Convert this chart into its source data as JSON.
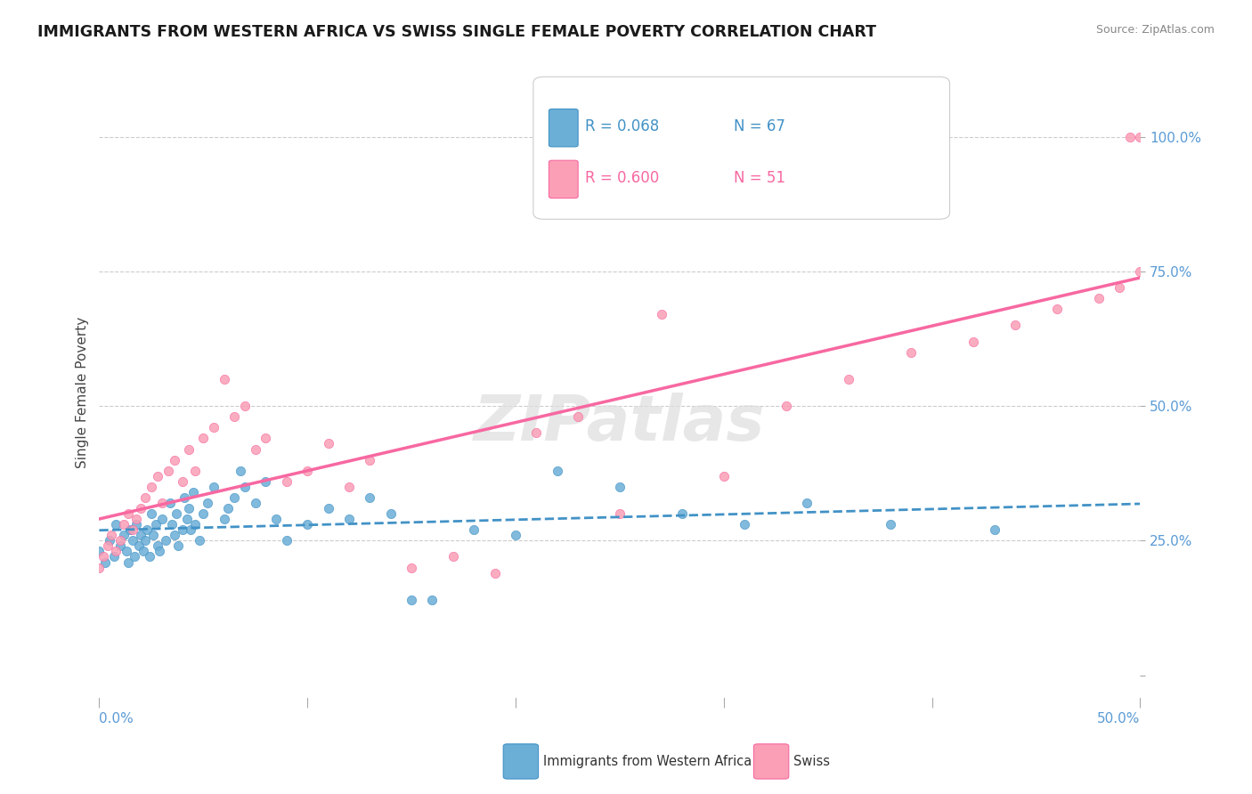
{
  "title": "IMMIGRANTS FROM WESTERN AFRICA VS SWISS SINGLE FEMALE POVERTY CORRELATION CHART",
  "source": "Source: ZipAtlas.com",
  "ylabel": "Single Female Poverty",
  "y_ticks": [
    0.0,
    0.25,
    0.5,
    0.75,
    1.0
  ],
  "y_tick_labels": [
    "",
    "25.0%",
    "50.0%",
    "75.0%",
    "100.0%"
  ],
  "x_range": [
    0.0,
    0.5
  ],
  "y_range": [
    -0.05,
    1.1
  ],
  "legend_r1": "R = 0.068",
  "legend_n1": "N = 67",
  "legend_r2": "R = 0.600",
  "legend_n2": "N = 51",
  "blue_color": "#6baed6",
  "pink_color": "#fa9fb5",
  "blue_line_color": "#4292c6",
  "pink_line_color": "#f768a1",
  "axis_color": "#5b9bd5",
  "blue_scatter_x": [
    0.0,
    0.003,
    0.005,
    0.007,
    0.008,
    0.01,
    0.012,
    0.013,
    0.014,
    0.015,
    0.016,
    0.017,
    0.018,
    0.019,
    0.02,
    0.021,
    0.022,
    0.023,
    0.024,
    0.025,
    0.026,
    0.027,
    0.028,
    0.029,
    0.03,
    0.032,
    0.034,
    0.035,
    0.036,
    0.037,
    0.038,
    0.04,
    0.041,
    0.042,
    0.043,
    0.044,
    0.045,
    0.046,
    0.048,
    0.05,
    0.052,
    0.055,
    0.06,
    0.062,
    0.065,
    0.068,
    0.07,
    0.075,
    0.08,
    0.085,
    0.09,
    0.1,
    0.11,
    0.12,
    0.13,
    0.14,
    0.15,
    0.16,
    0.18,
    0.2,
    0.22,
    0.25,
    0.28,
    0.31,
    0.34,
    0.38,
    0.43
  ],
  "blue_scatter_y": [
    0.23,
    0.21,
    0.25,
    0.22,
    0.28,
    0.24,
    0.26,
    0.23,
    0.21,
    0.27,
    0.25,
    0.22,
    0.28,
    0.24,
    0.26,
    0.23,
    0.25,
    0.27,
    0.22,
    0.3,
    0.26,
    0.28,
    0.24,
    0.23,
    0.29,
    0.25,
    0.32,
    0.28,
    0.26,
    0.3,
    0.24,
    0.27,
    0.33,
    0.29,
    0.31,
    0.27,
    0.34,
    0.28,
    0.25,
    0.3,
    0.32,
    0.35,
    0.29,
    0.31,
    0.33,
    0.38,
    0.35,
    0.32,
    0.36,
    0.29,
    0.25,
    0.28,
    0.31,
    0.29,
    0.33,
    0.3,
    0.14,
    0.14,
    0.27,
    0.26,
    0.38,
    0.35,
    0.3,
    0.28,
    0.32,
    0.28,
    0.27
  ],
  "pink_scatter_x": [
    0.0,
    0.002,
    0.004,
    0.006,
    0.008,
    0.01,
    0.012,
    0.014,
    0.016,
    0.018,
    0.02,
    0.022,
    0.025,
    0.028,
    0.03,
    0.033,
    0.036,
    0.04,
    0.043,
    0.046,
    0.05,
    0.055,
    0.06,
    0.065,
    0.07,
    0.075,
    0.08,
    0.09,
    0.1,
    0.11,
    0.12,
    0.13,
    0.15,
    0.17,
    0.19,
    0.21,
    0.23,
    0.25,
    0.27,
    0.3,
    0.33,
    0.36,
    0.39,
    0.42,
    0.44,
    0.46,
    0.48,
    0.49,
    0.495,
    0.5,
    0.5
  ],
  "pink_scatter_y": [
    0.2,
    0.22,
    0.24,
    0.26,
    0.23,
    0.25,
    0.28,
    0.3,
    0.27,
    0.29,
    0.31,
    0.33,
    0.35,
    0.37,
    0.32,
    0.38,
    0.4,
    0.36,
    0.42,
    0.38,
    0.44,
    0.46,
    0.55,
    0.48,
    0.5,
    0.42,
    0.44,
    0.36,
    0.38,
    0.43,
    0.35,
    0.4,
    0.2,
    0.22,
    0.19,
    0.45,
    0.48,
    0.3,
    0.67,
    0.37,
    0.5,
    0.55,
    0.6,
    0.62,
    0.65,
    0.68,
    0.7,
    0.72,
    1.0,
    0.75,
    1.0
  ]
}
